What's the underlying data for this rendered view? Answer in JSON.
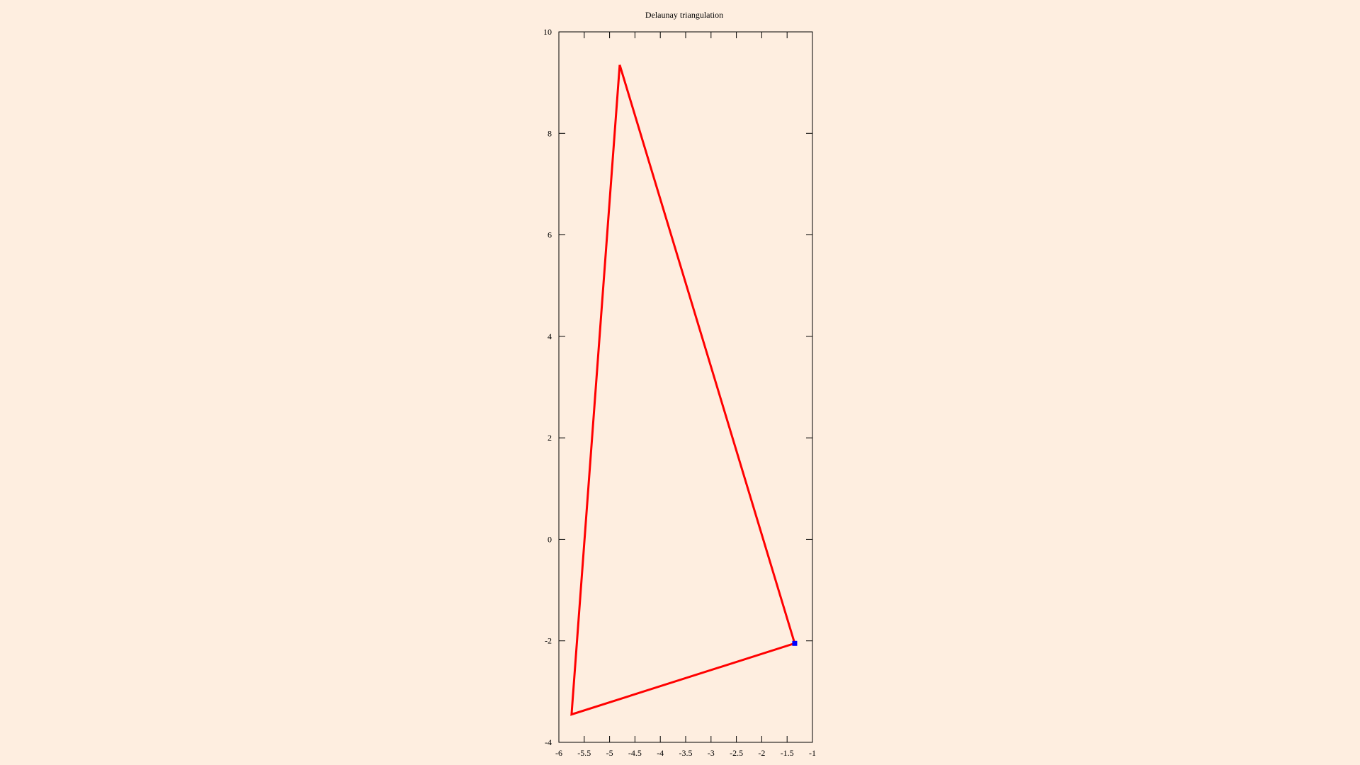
{
  "chart_data": {
    "type": "line",
    "title": "Delaunay triangulation",
    "xlabel": "",
    "ylabel": "",
    "xlim": [
      -6,
      -1
    ],
    "ylim": [
      -4,
      10
    ],
    "x_ticks": [
      -6,
      -5.5,
      -5,
      -4.5,
      -4,
      -3.5,
      -3,
      -2.5,
      -2,
      -1.5,
      -1
    ],
    "y_ticks": [
      -4,
      -2,
      0,
      2,
      4,
      6,
      8,
      10
    ],
    "grid": false,
    "legend": "none",
    "series": [
      {
        "kind": "polygon",
        "color": "#ff0000",
        "points": [
          {
            "x": -4.8,
            "y": 9.35
          },
          {
            "x": -1.35,
            "y": -2.05
          },
          {
            "x": -5.75,
            "y": -3.45
          },
          {
            "x": -4.8,
            "y": 9.35
          }
        ]
      },
      {
        "kind": "marker",
        "color": "#0000ff",
        "points": [
          {
            "x": -1.35,
            "y": -2.05
          }
        ]
      }
    ]
  },
  "colors": {
    "background": "#feeee0",
    "axis": "#000000",
    "triangle": "#ff0000",
    "marker": "#0000ff"
  }
}
